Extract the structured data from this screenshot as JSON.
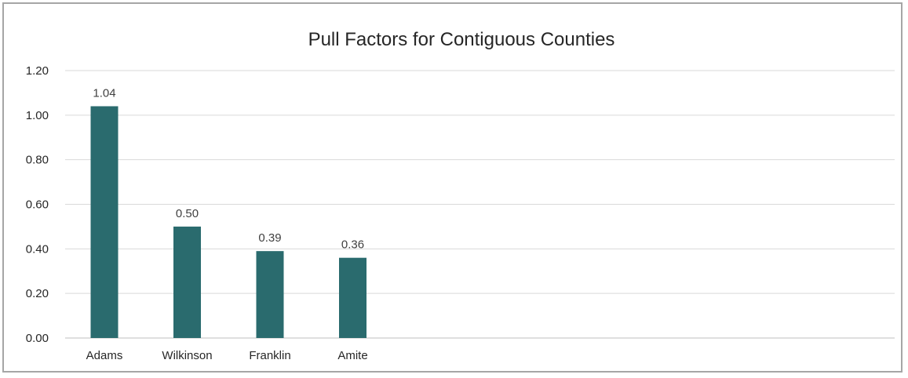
{
  "chart_data": {
    "type": "bar",
    "title": "Pull Factors for Contiguous Counties",
    "xlabel": "",
    "ylabel": "",
    "categories": [
      "Adams",
      "Wilkinson",
      "Franklin",
      "Amite"
    ],
    "values": [
      1.04,
      0.5,
      0.39,
      0.36
    ],
    "data_labels": [
      "1.04",
      "0.50",
      "0.39",
      "0.36"
    ],
    "ylim": [
      0,
      1.2
    ],
    "yticks": [
      0,
      0.2,
      0.4,
      0.6,
      0.8,
      1.0,
      1.2
    ],
    "ytick_labels": [
      "0.00",
      "0.20",
      "0.40",
      "0.60",
      "0.80",
      "1.00",
      "1.20"
    ],
    "bar_color": "#2a6b6e",
    "grid": true,
    "legend": "none"
  }
}
